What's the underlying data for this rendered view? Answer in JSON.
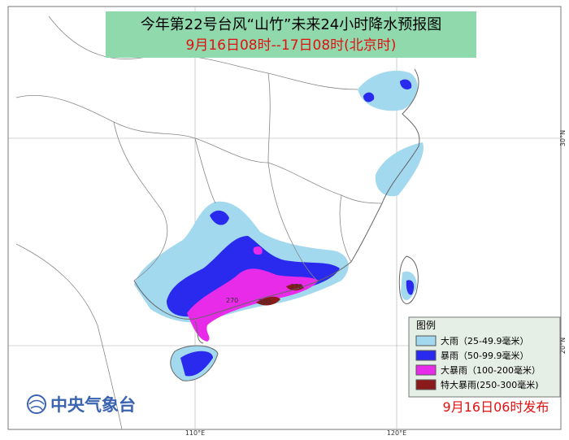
{
  "title": "今年第22号台风“山竹”未来24小时降水预报图",
  "subtitle": "9月16日08时--17日08时(北京时)",
  "legend": {
    "title": "图例",
    "items": [
      {
        "label": "大雨（25-49.9毫米）",
        "color": "#a3d9ee"
      },
      {
        "label": "暴雨（50-99.9毫米）",
        "color": "#2a2aee"
      },
      {
        "label": "大暴雨（100-200毫米）",
        "color": "#e82be8"
      },
      {
        "label": "特大暴雨(250-300毫米)",
        "color": "#8b1a1a"
      }
    ]
  },
  "annotations": [
    "270",
    "300",
    "270"
  ],
  "grid_labels": {
    "x": [
      "110°E",
      "120°E"
    ],
    "y": [
      "30°N",
      "20°N"
    ]
  },
  "footer": {
    "agency": "中央气象台",
    "issued": "9月16日06时发布"
  }
}
